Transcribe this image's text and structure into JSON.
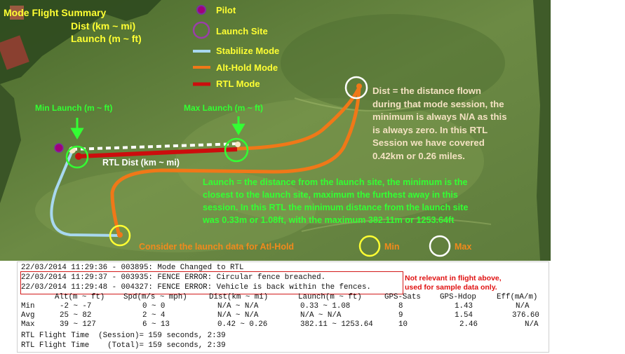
{
  "title": {
    "line1": "Mode Flight Summary",
    "line2": "Dist (km ~ mi)",
    "line3": "Launch (m ~ ft)"
  },
  "legend": {
    "pilot": "Pilot",
    "launch_site": "Launch Site",
    "stabilize": "Stabilize Mode",
    "althold": "Alt-Hold Mode",
    "rtl": "RTL Mode"
  },
  "labels": {
    "min_launch": "Min Launch (m ~ ft)",
    "max_launch": "Max Launch (m ~ ft)",
    "rtl_dist": "RTL Dist (km ~ mi)",
    "consider": "Consider the launch data for Atl-Hold",
    "min": "Min",
    "max": "Max"
  },
  "notes": {
    "dist": [
      "Dist = the distance flown",
      "during that mode session, the",
      "minimum is always N/A as this",
      "is always zero. In this RTL",
      "Session we have covered",
      "0.42km or 0.26 miles."
    ],
    "launch": [
      "Launch = the distance from the launch site, the minimum is the",
      "closest to the launch site, maximum the furthest away in this",
      "session. In this RTL the minimum distance from the launch site",
      "was 0.33m or 1.08ft, with the maximum 382.11m or 1253.64ft"
    ]
  },
  "colors": {
    "pilot": "#a0007a",
    "launch_site": "#9a3ea8",
    "stabilize": "#a8d8f0",
    "althold": "#f07818",
    "rtl": "#cc0d0d",
    "note_red": "#e01010",
    "circle_min": "#ffff33",
    "circle_max": "#ffffff",
    "marker_green": "#33ff33"
  },
  "log": {
    "lines": [
      "22/03/2014 11:29:36 - 003895: Mode Changed to RTL",
      "22/03/2014 11:29:37 - 003935: FENCE ERROR: Circular fence breached.",
      "22/03/2014 11:29:48 - 004327: FENCE ERROR: Vehicle is back within the fences."
    ],
    "note": [
      "Not relevant in flight above,",
      "used for sample data only."
    ]
  },
  "table": {
    "header": [
      "",
      "Alt(m ~ ft)",
      "Spd(m/s ~ mph)",
      "Dist(km ~ mi)",
      "Launch(m ~ ft)",
      "GPS-Sats",
      "GPS-Hdop",
      "Eff(mA/m)"
    ],
    "rows": [
      [
        "Min",
        "-2 ~ -7",
        "0 ~ 0",
        "N/A ~ N/A",
        "0.33 ~ 1.08",
        "8",
        "1.43",
        "N/A"
      ],
      [
        "Avg",
        "25 ~ 82",
        "2 ~ 4",
        "N/A ~ N/A",
        "N/A ~ N/A",
        "9",
        "1.54",
        "376.60"
      ],
      [
        "Max",
        "39 ~ 127",
        "6 ~ 13",
        "0.42 ~ 0.26",
        "382.11 ~ 1253.64",
        "10",
        "2.46",
        "N/A"
      ]
    ]
  },
  "summary": [
    "RTL Flight Time  (Session)= 159 seconds, 2:39",
    "RTL Flight Time    (Total)= 159 seconds, 2:39"
  ]
}
